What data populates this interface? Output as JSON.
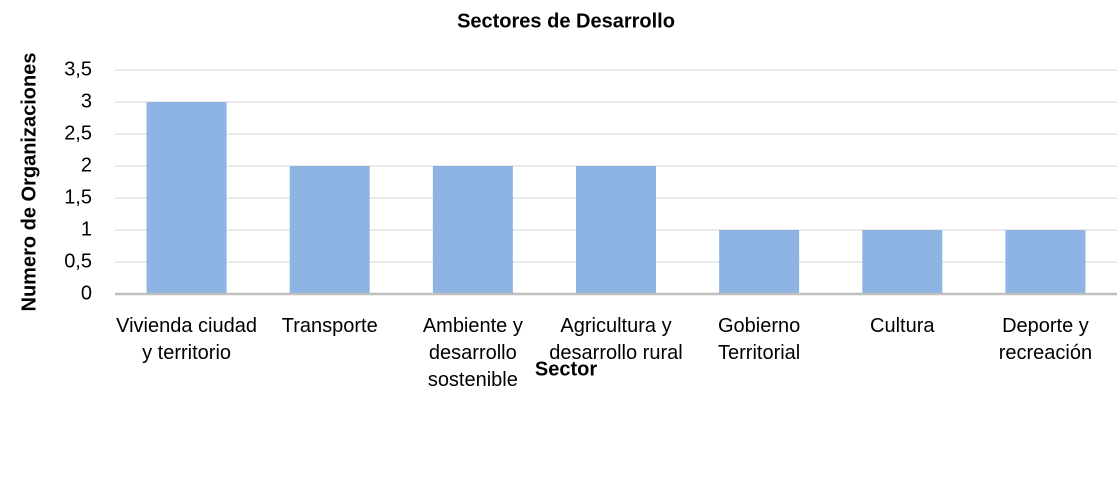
{
  "chart_data": {
    "type": "bar",
    "title": "Sectores de Desarrollo",
    "x_label": "Sector",
    "y_label": "Numero de Organizaciones",
    "categories": [
      "Vivienda ciudad y territorio",
      "Transporte",
      "Ambiente y desarrollo sostenible",
      "Agricultura y desarrollo rural",
      "Gobierno Territorial",
      "Cultura",
      "Deporte y recreación"
    ],
    "values": [
      3,
      2,
      2,
      2,
      1,
      1,
      1
    ],
    "color": "#8db4e2",
    "ylim": [
      0,
      3.5
    ],
    "yticks": [
      0,
      {
        "value": 0.5,
        "label": "0,5"
      },
      1,
      {
        "value": 1.5,
        "label": "1,5"
      },
      2,
      {
        "value": 2.5,
        "label": "2,5"
      },
      3,
      {
        "value": 3.5,
        "label": "3,5"
      }
    ],
    "grid": true
  }
}
